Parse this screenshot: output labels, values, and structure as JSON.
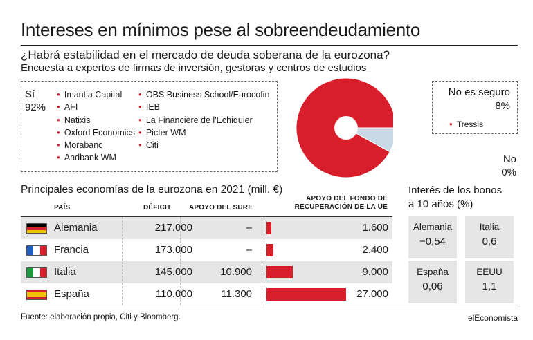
{
  "title": "Intereses en mínimos pese al sobreendeudamiento",
  "subtitle": "¿Habrá estabilidad en el mercado de deuda soberana de la eurozona?",
  "subtitle2": "Encuesta a expertos de firmas de inversión, gestoras y centros de estudios",
  "survey": {
    "yes": {
      "label": "Sí",
      "pct": "92%",
      "firms_col1": [
        "Imantia Capital",
        "AFI",
        "Natixis",
        "Oxford Economics",
        "Morabanc",
        "Andbank WM"
      ],
      "firms_col2": [
        "OBS Business School/Eurocofin",
        "IEB",
        "La Financière de l'Echiquier",
        "Picter WM",
        "Citi"
      ]
    },
    "unsure": {
      "label": "No es seguro",
      "pct": "8%",
      "firms": [
        "Tressis"
      ]
    },
    "no": {
      "label": "No",
      "pct": "0%"
    }
  },
  "table": {
    "title": "Principales economías de la eurozona en 2021 (mill. €)",
    "headers": {
      "country": "PAÍS",
      "deficit": "DÉFICIT",
      "sure": "APOYO DEL SURE",
      "fund_line1": "APOYO DEL FONDO DE",
      "fund_line2": "RECUPERACIÓN DE LA UE"
    },
    "rows": [
      {
        "country": "Alemania",
        "deficit": "217.000",
        "sure": "–",
        "fund": "1.600"
      },
      {
        "country": "Francia",
        "deficit": "173.000",
        "sure": "–",
        "fund": "2.400"
      },
      {
        "country": "Italia",
        "deficit": "145.000",
        "sure": "10.900",
        "fund": "9.000"
      },
      {
        "country": "España",
        "deficit": "110.000",
        "sure": "11.300",
        "fund": "27.000"
      }
    ]
  },
  "bonds": {
    "title_line1": "Interés de los bonos",
    "title_line2": "a 10 años (%)",
    "items": [
      {
        "country": "Alemania",
        "value": "−0,54"
      },
      {
        "country": "Italia",
        "value": "0,6"
      },
      {
        "country": "España",
        "value": "0,06"
      },
      {
        "country": "EEUU",
        "value": "1,1"
      }
    ]
  },
  "footer": {
    "source": "Fuente: elaboración propia, Citi y Bloomberg.",
    "brand": "elEconomista"
  },
  "colors": {
    "accent": "#d91e2b",
    "secondary": "#c7d9e4",
    "panel": "#e6e6e6"
  },
  "chart_data": [
    {
      "type": "pie",
      "title": "¿Habrá estabilidad en el mercado de deuda soberana de la eurozona?",
      "categories": [
        "Sí",
        "No es seguro",
        "No"
      ],
      "values": [
        92,
        8,
        0
      ],
      "colors": [
        "#d91e2b",
        "#c7d9e4",
        "#ffffff"
      ]
    },
    {
      "type": "bar",
      "title": "Principales economías de la eurozona en 2021 (mill. €)",
      "categories": [
        "Alemania",
        "Francia",
        "Italia",
        "España"
      ],
      "series": [
        {
          "name": "APOYO DEL FONDO DE RECUPERACIÓN DE LA UE",
          "values": [
            1600,
            2400,
            9000,
            27000
          ]
        }
      ],
      "xlim": [
        0,
        27000
      ]
    }
  ]
}
